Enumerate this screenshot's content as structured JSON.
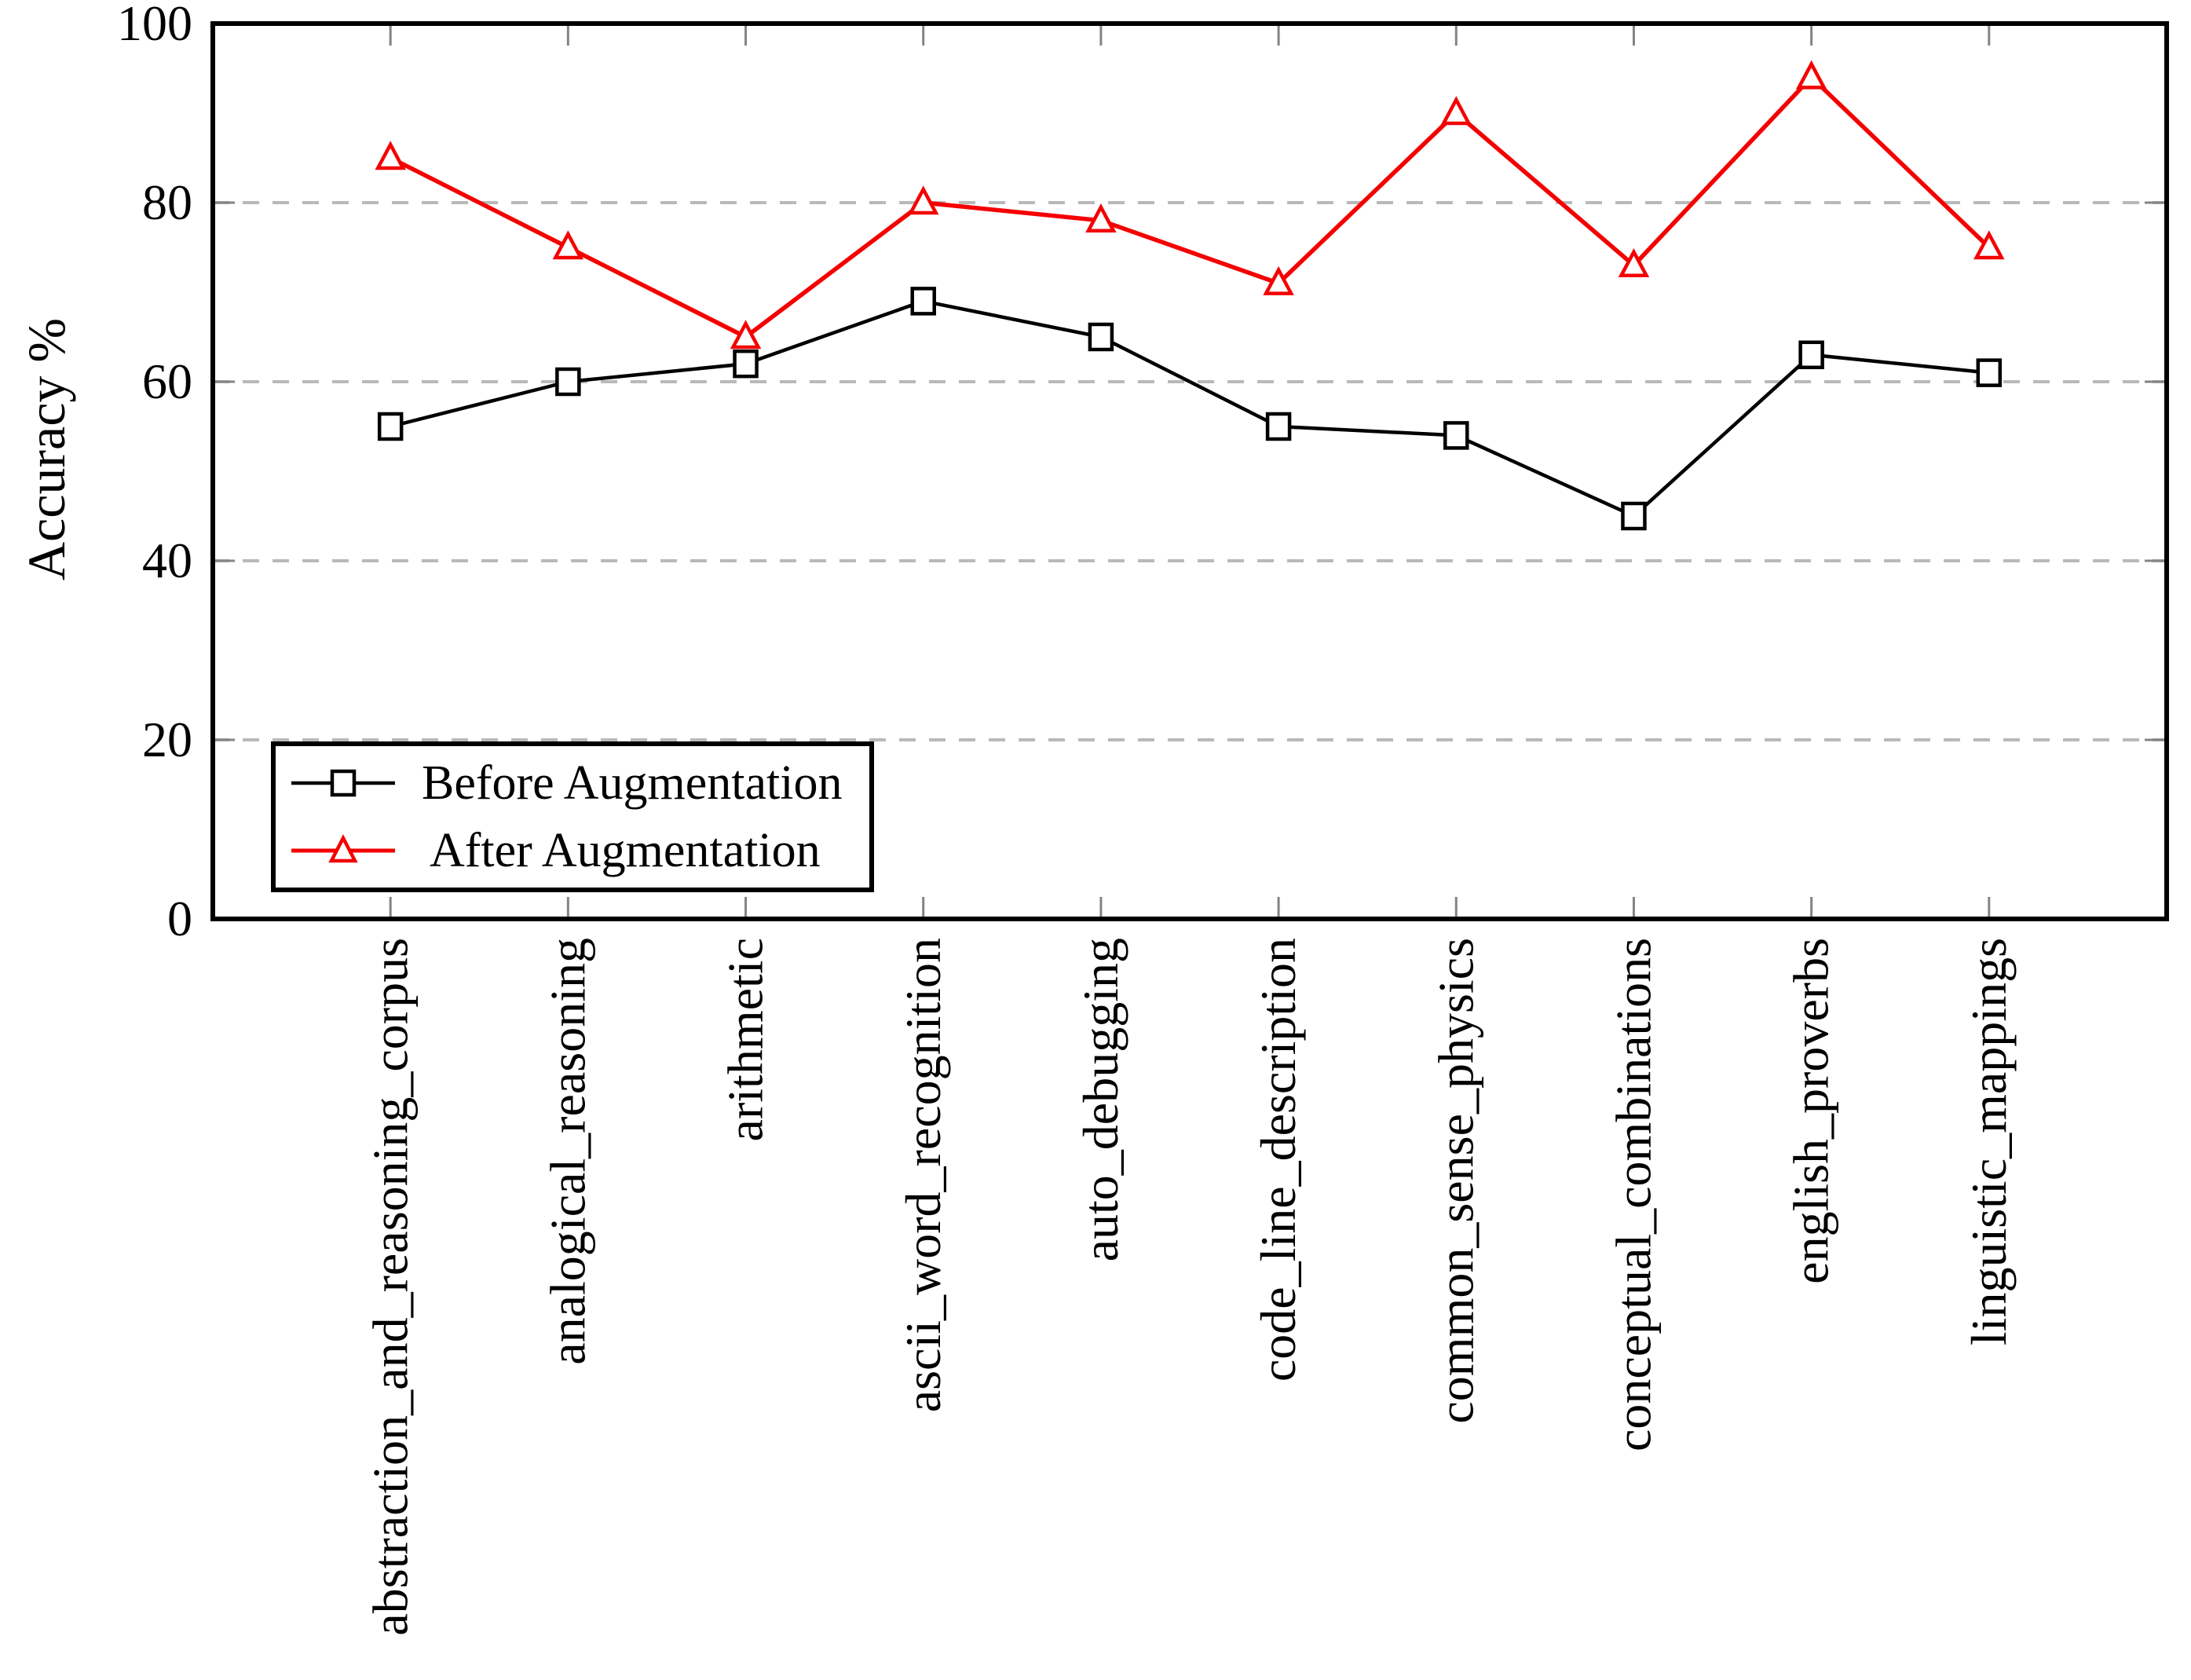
{
  "chart_data": {
    "type": "line",
    "title": "",
    "xlabel": "",
    "ylabel": "Accuracy %",
    "ylim": [
      0,
      100
    ],
    "categories": [
      "abstraction_and_reasoning_corpus",
      "analogical_reasoning",
      "arithmetic",
      "ascii_word_recognition",
      "auto_debugging",
      "code_line_description",
      "common_sense_physics",
      "conceptual_combinations",
      "english_proverbs",
      "linguistic_mappings"
    ],
    "series": [
      {
        "name": "Before Augmentation",
        "color": "#000000",
        "marker": "square",
        "values": [
          55,
          60,
          62,
          69,
          65,
          55,
          54,
          45,
          63,
          61
        ]
      },
      {
        "name": "After Augmentation",
        "color": "#f50000",
        "marker": "triangle",
        "values": [
          85,
          75,
          65,
          80,
          78,
          71,
          90,
          73,
          94,
          75
        ]
      }
    ],
    "grid": {
      "axis": "y",
      "style": "dashed",
      "values": [
        20,
        40,
        60,
        80
      ]
    },
    "legend_position": "lower left"
  },
  "y_axis": {
    "label": "Accuracy %",
    "ticks": [
      0,
      20,
      40,
      60,
      80,
      100
    ]
  },
  "colors": {
    "gridline": "#b9b9b9",
    "tick": "#848484",
    "frame": "#000000",
    "background": "#ffffff"
  }
}
